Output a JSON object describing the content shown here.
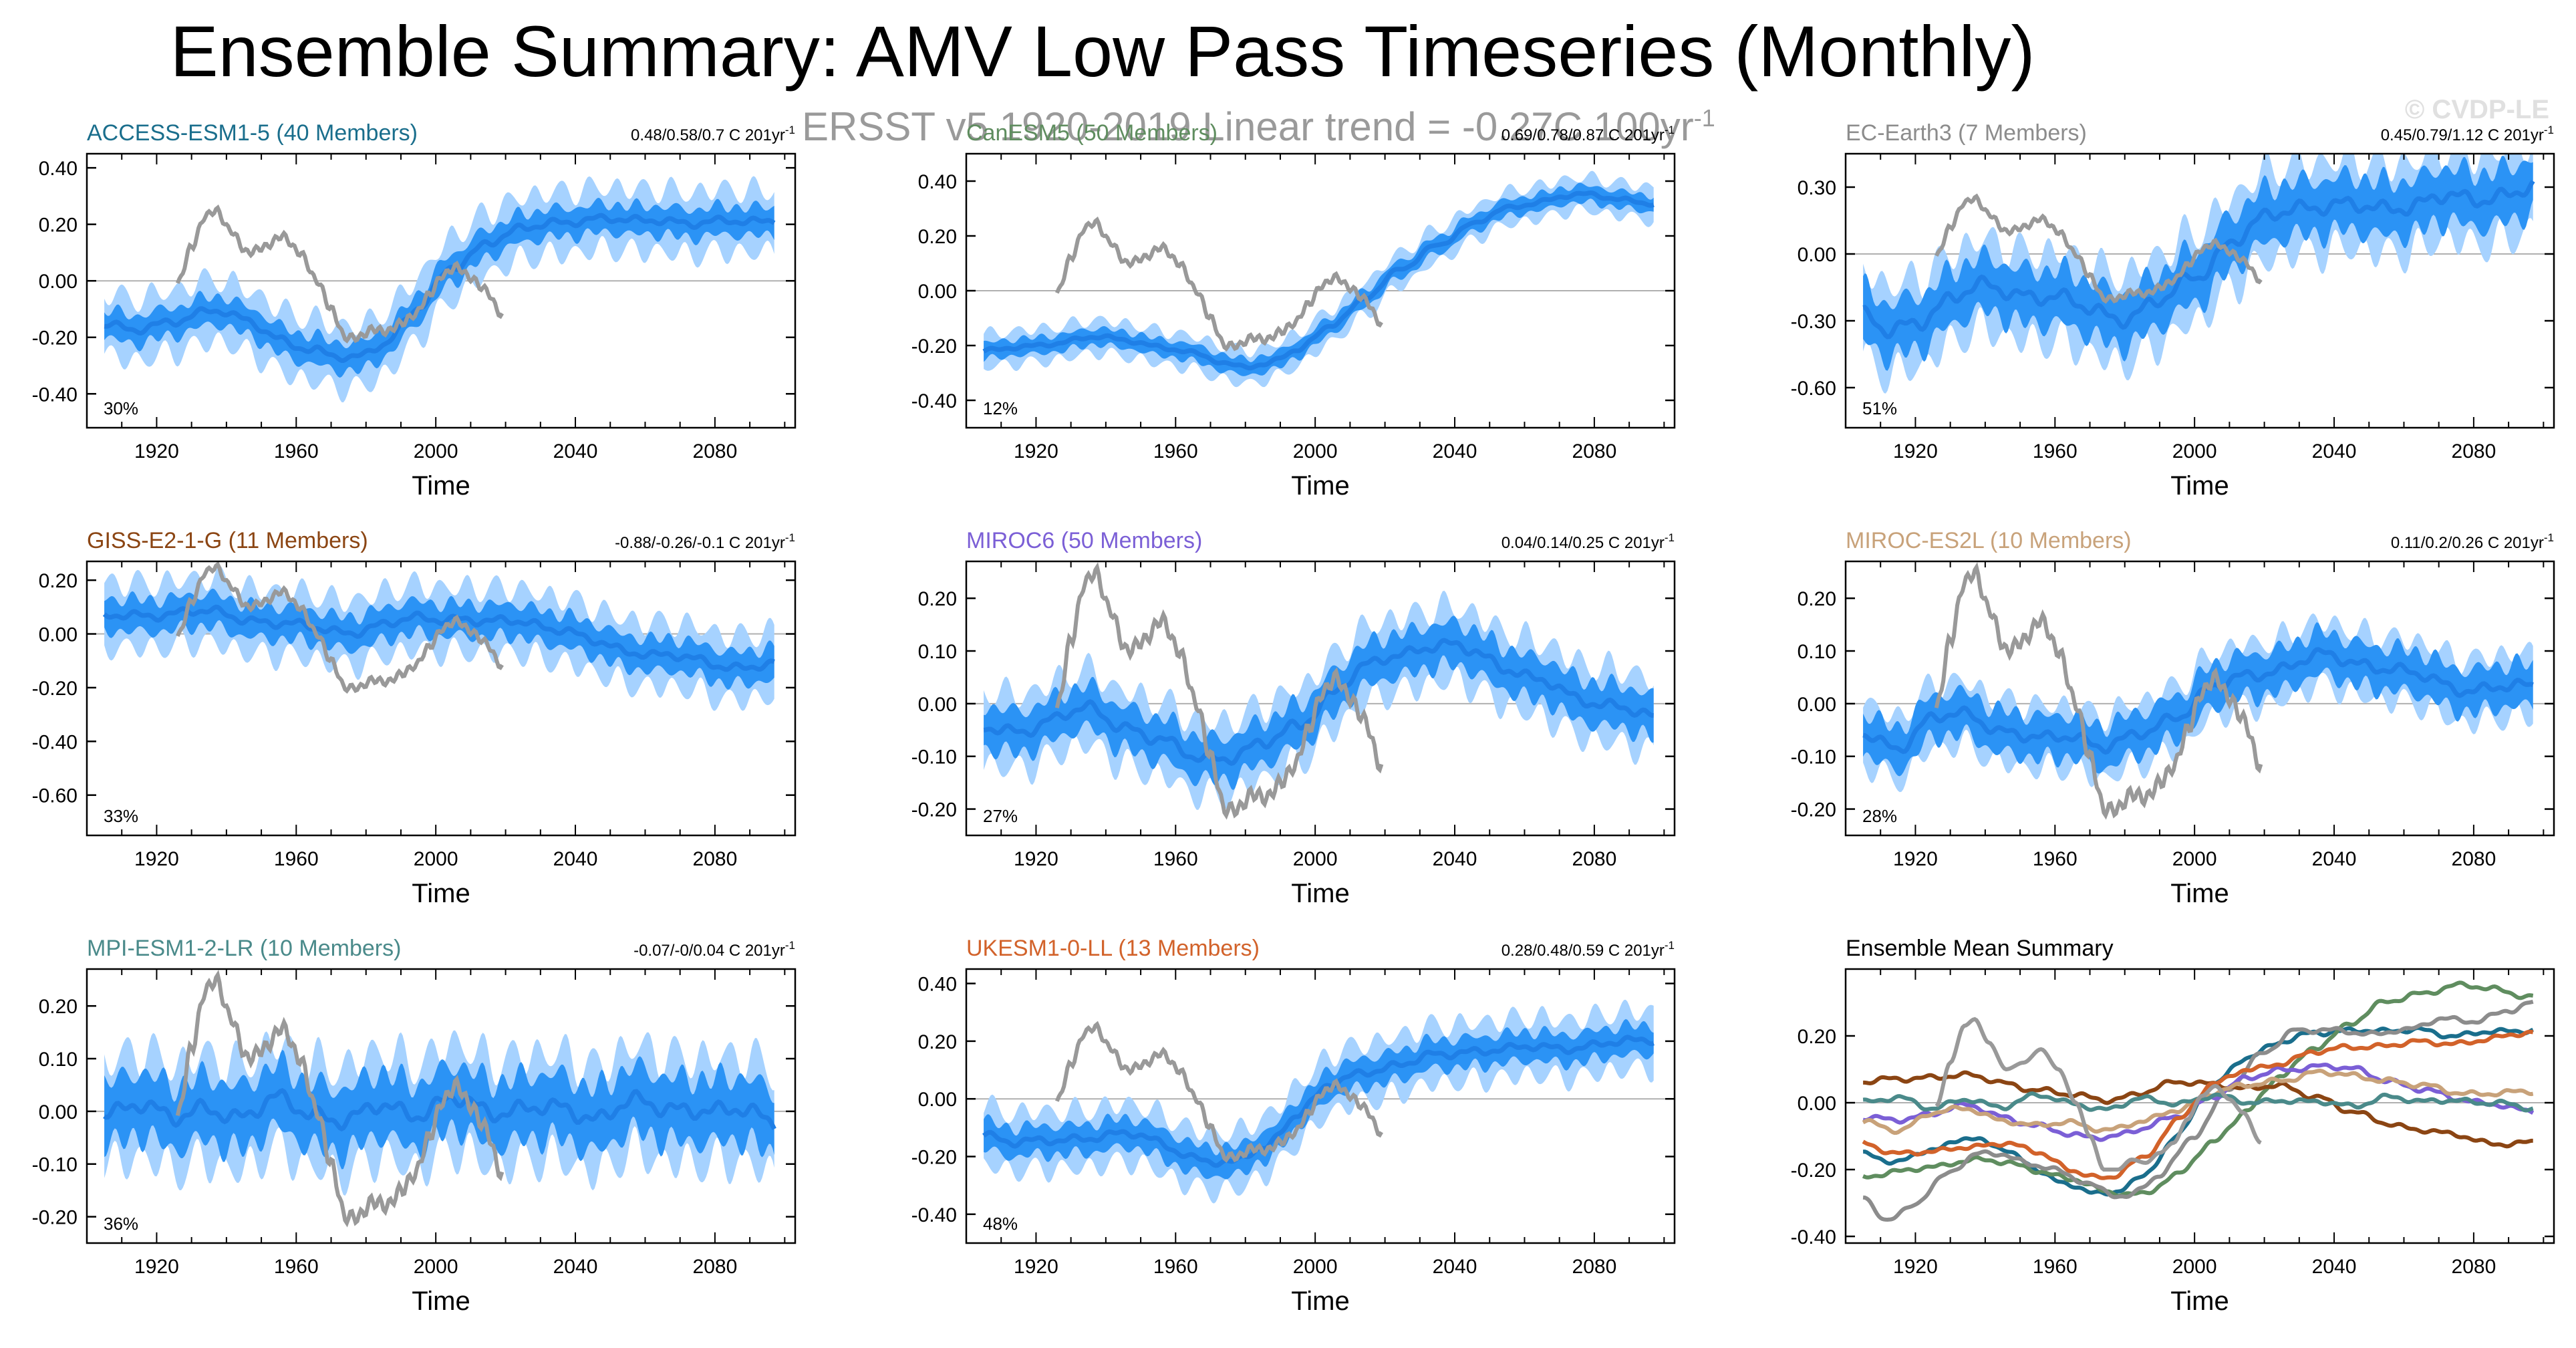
{
  "title": "Ensemble Summary: AMV Low Pass Timeseries (Monthly)",
  "subtitle_main": "ERSST v5 1920-2019  Linear trend = -0.27C 100yr",
  "subtitle_sup": "-1",
  "watermark": "© CVDP-LE",
  "colors": {
    "band_outer": "#a6d2ff",
    "band_inner": "#2b93f5",
    "ens_mean": "#1f7fe6",
    "obs": "#999999",
    "zero_line": "#b0b0b0"
  },
  "chart_data": [
    {
      "type": "line",
      "id": "access",
      "title": "ACCESS-ESM1-5 (40 Members)",
      "title_color": "#1a6e8c",
      "trend_label": "0.48/0.58/0.7 C 201yr",
      "trend_sup": "-1",
      "pct_label": "30%",
      "xlabel": "Time",
      "xlim": [
        1900,
        2103
      ],
      "ylim": [
        -0.52,
        0.45
      ],
      "yticks": [
        -0.4,
        -0.2,
        0.0,
        0.2,
        0.4
      ],
      "ytick_labels": [
        "-0.40",
        "-0.20",
        "0.00",
        "0.20",
        "0.40"
      ],
      "xticks": [
        1920,
        1960,
        2000,
        2040,
        2080
      ],
      "mean_x": [
        1905,
        1915,
        1925,
        1935,
        1945,
        1955,
        1965,
        1975,
        1985,
        1995,
        2005,
        2015,
        2025,
        2035,
        2045,
        2055,
        2065,
        2075,
        2085,
        2097
      ],
      "mean_y": [
        -0.15,
        -0.18,
        -0.14,
        -0.1,
        -0.14,
        -0.2,
        -0.25,
        -0.28,
        -0.22,
        -0.1,
        0.05,
        0.14,
        0.18,
        0.21,
        0.22,
        0.21,
        0.22,
        0.2,
        0.21,
        0.22
      ],
      "inner_spread": 0.05,
      "outer_spread": 0.11,
      "obs_x": [
        1926,
        1930,
        1934,
        1937,
        1941,
        1946,
        1951,
        1956,
        1961,
        1966,
        1970,
        1974,
        1978,
        1982,
        1986,
        1990,
        1994,
        1998,
        2002,
        2006,
        2010,
        2014,
        2019
      ],
      "obs_y": [
        -0.01,
        0.12,
        0.23,
        0.25,
        0.18,
        0.1,
        0.12,
        0.16,
        0.1,
        0.0,
        -0.1,
        -0.2,
        -0.2,
        -0.17,
        -0.18,
        -0.15,
        -0.12,
        -0.05,
        0.02,
        0.05,
        0.01,
        -0.03,
        -0.12
      ]
    },
    {
      "type": "line",
      "id": "canesm",
      "title": "CanESM5 (50 Members)",
      "title_color": "#5f8d5f",
      "trend_label": "0.69/0.78/0.87 C 201yr",
      "trend_sup": "-1",
      "pct_label": "12%",
      "xlabel": "Time",
      "xlim": [
        1900,
        2103
      ],
      "ylim": [
        -0.5,
        0.5
      ],
      "yticks": [
        -0.4,
        -0.2,
        0.0,
        0.2,
        0.4
      ],
      "ytick_labels": [
        "-0.40",
        "-0.20",
        "0.00",
        "0.20",
        "0.40"
      ],
      "xticks": [
        1920,
        1960,
        2000,
        2040,
        2080
      ],
      "mean_x": [
        1905,
        1915,
        1925,
        1935,
        1945,
        1955,
        1965,
        1975,
        1985,
        1995,
        2005,
        2015,
        2025,
        2035,
        2045,
        2055,
        2065,
        2075,
        2085,
        2097
      ],
      "mean_y": [
        -0.22,
        -0.21,
        -0.19,
        -0.17,
        -0.18,
        -0.2,
        -0.23,
        -0.27,
        -0.27,
        -0.22,
        -0.12,
        -0.02,
        0.08,
        0.17,
        0.24,
        0.3,
        0.33,
        0.35,
        0.34,
        0.32
      ],
      "inner_spread": 0.03,
      "outer_spread": 0.06,
      "obs_x": [
        1926,
        1930,
        1934,
        1937,
        1941,
        1946,
        1951,
        1956,
        1961,
        1966,
        1970,
        1974,
        1978,
        1982,
        1986,
        1990,
        1994,
        1998,
        2002,
        2006,
        2010,
        2014,
        2019
      ],
      "obs_y": [
        -0.01,
        0.12,
        0.23,
        0.25,
        0.18,
        0.1,
        0.12,
        0.16,
        0.1,
        0.0,
        -0.1,
        -0.2,
        -0.2,
        -0.17,
        -0.18,
        -0.15,
        -0.12,
        -0.05,
        0.02,
        0.05,
        0.01,
        -0.03,
        -0.12
      ]
    },
    {
      "type": "line",
      "id": "ecearth",
      "title": "EC-Earth3 (7 Members)",
      "title_color": "#8c8c8c",
      "trend_label": "0.45/0.79/1.12 C 201yr",
      "trend_sup": "-1",
      "pct_label": "51%",
      "xlabel": "Time",
      "xlim": [
        1900,
        2103
      ],
      "ylim": [
        -0.78,
        0.45
      ],
      "yticks": [
        -0.6,
        -0.3,
        0.0,
        0.3
      ],
      "ytick_labels": [
        "-0.60",
        "-0.30",
        "0.00",
        "0.30"
      ],
      "xticks": [
        1920,
        1960,
        2000,
        2040,
        2080
      ],
      "mean_x": [
        1905,
        1912,
        1920,
        1930,
        1940,
        1950,
        1960,
        1970,
        1980,
        1990,
        2000,
        2010,
        2020,
        2030,
        2040,
        2050,
        2060,
        2070,
        2080,
        2090,
        2097
      ],
      "mean_y": [
        -0.28,
        -0.36,
        -0.3,
        -0.2,
        -0.15,
        -0.17,
        -0.2,
        -0.25,
        -0.28,
        -0.22,
        -0.1,
        0.05,
        0.15,
        0.22,
        0.22,
        0.2,
        0.22,
        0.25,
        0.24,
        0.28,
        0.3
      ],
      "inner_spread": 0.12,
      "outer_spread": 0.2,
      "obs_x": [
        1926,
        1930,
        1934,
        1937,
        1941,
        1946,
        1951,
        1956,
        1961,
        1966,
        1970,
        1974,
        1978,
        1982,
        1986,
        1990,
        1994,
        1998,
        2002,
        2006,
        2010,
        2014,
        2019
      ],
      "obs_y": [
        -0.01,
        0.12,
        0.23,
        0.25,
        0.18,
        0.1,
        0.12,
        0.16,
        0.1,
        0.0,
        -0.1,
        -0.2,
        -0.2,
        -0.17,
        -0.18,
        -0.15,
        -0.12,
        -0.05,
        0.02,
        0.05,
        0.01,
        -0.03,
        -0.12
      ]
    },
    {
      "type": "line",
      "id": "giss",
      "title": "GISS-E2-1-G (11 Members)",
      "title_color": "#8b4513",
      "trend_label": "-0.88/-0.26/-0.1 C 201yr",
      "trend_sup": "-1",
      "pct_label": "33%",
      "xlabel": "Time",
      "xlim": [
        1900,
        2103
      ],
      "ylim": [
        -0.75,
        0.27
      ],
      "yticks": [
        -0.6,
        -0.4,
        -0.2,
        0.0,
        0.2
      ],
      "ytick_labels": [
        "-0.60",
        "-0.40",
        "-0.20",
        "0.00",
        "0.20"
      ],
      "xticks": [
        1920,
        1960,
        2000,
        2040,
        2080
      ],
      "mean_x": [
        1905,
        1915,
        1925,
        1935,
        1945,
        1955,
        1965,
        1975,
        1985,
        1995,
        2005,
        2015,
        2025,
        2035,
        2045,
        2055,
        2065,
        2075,
        2085,
        2097
      ],
      "mean_y": [
        0.06,
        0.07,
        0.08,
        0.08,
        0.06,
        0.04,
        0.02,
        0.01,
        0.03,
        0.06,
        0.06,
        0.04,
        0.05,
        0.02,
        -0.03,
        -0.06,
        -0.08,
        -0.1,
        -0.12,
        -0.12
      ],
      "inner_spread": 0.06,
      "outer_spread": 0.12,
      "obs_x": [
        1926,
        1930,
        1934,
        1937,
        1941,
        1946,
        1951,
        1956,
        1961,
        1966,
        1970,
        1974,
        1978,
        1982,
        1986,
        1990,
        1994,
        1998,
        2002,
        2006,
        2010,
        2014,
        2019
      ],
      "obs_y": [
        -0.01,
        0.12,
        0.23,
        0.25,
        0.18,
        0.1,
        0.12,
        0.16,
        0.1,
        0.0,
        -0.1,
        -0.2,
        -0.2,
        -0.17,
        -0.18,
        -0.15,
        -0.12,
        -0.05,
        0.02,
        0.05,
        0.01,
        -0.03,
        -0.12
      ]
    },
    {
      "type": "line",
      "id": "miroc6",
      "title": "MIROC6 (50 Members)",
      "title_color": "#7b5fd6",
      "trend_label": "0.04/0.14/0.25 C 201yr",
      "trend_sup": "-1",
      "pct_label": "27%",
      "xlabel": "Time",
      "xlim": [
        1900,
        2103
      ],
      "ylim": [
        -0.25,
        0.27
      ],
      "yticks": [
        -0.2,
        -0.1,
        0.0,
        0.1,
        0.2
      ],
      "ytick_labels": [
        "-0.20",
        "-0.10",
        "0.00",
        "0.10",
        "0.20"
      ],
      "xticks": [
        1920,
        1960,
        2000,
        2040,
        2080
      ],
      "mean_x": [
        1905,
        1915,
        1925,
        1935,
        1945,
        1955,
        1965,
        1975,
        1985,
        1995,
        2005,
        2015,
        2025,
        2035,
        2045,
        2055,
        2065,
        2075,
        2085,
        2097
      ],
      "mean_y": [
        -0.05,
        -0.05,
        -0.03,
        -0.01,
        -0.04,
        -0.07,
        -0.1,
        -0.1,
        -0.08,
        -0.04,
        0.02,
        0.07,
        0.1,
        0.11,
        0.1,
        0.07,
        0.04,
        0.01,
        0.0,
        -0.03
      ],
      "inner_spread": 0.04,
      "outer_spread": 0.07,
      "obs_x": [
        1926,
        1930,
        1934,
        1937,
        1941,
        1946,
        1951,
        1956,
        1961,
        1966,
        1970,
        1974,
        1978,
        1982,
        1986,
        1990,
        1994,
        1998,
        2002,
        2006,
        2010,
        2014,
        2019
      ],
      "obs_y": [
        -0.01,
        0.12,
        0.23,
        0.25,
        0.18,
        0.1,
        0.12,
        0.16,
        0.1,
        0.0,
        -0.1,
        -0.2,
        -0.2,
        -0.17,
        -0.18,
        -0.15,
        -0.12,
        -0.05,
        0.02,
        0.05,
        0.01,
        -0.03,
        -0.12
      ]
    },
    {
      "type": "line",
      "id": "mirocesl",
      "title": "MIROC-ES2L (10 Members)",
      "title_color": "#c8a27a",
      "trend_label": "0.11/0.2/0.26 C 201yr",
      "trend_sup": "-1",
      "pct_label": "28%",
      "xlabel": "Time",
      "xlim": [
        1900,
        2103
      ],
      "ylim": [
        -0.25,
        0.27
      ],
      "yticks": [
        -0.2,
        -0.1,
        0.0,
        0.1,
        0.2
      ],
      "ytick_labels": [
        "-0.20",
        "-0.10",
        "0.00",
        "0.10",
        "0.20"
      ],
      "xticks": [
        1920,
        1960,
        2000,
        2040,
        2080
      ],
      "mean_x": [
        1905,
        1915,
        1925,
        1935,
        1945,
        1955,
        1965,
        1975,
        1985,
        1995,
        2005,
        2015,
        2025,
        2035,
        2045,
        2055,
        2065,
        2075,
        2085,
        2097
      ],
      "mean_y": [
        -0.06,
        -0.08,
        -0.03,
        -0.02,
        -0.05,
        -0.07,
        -0.06,
        -0.08,
        -0.06,
        -0.02,
        0.03,
        0.05,
        0.07,
        0.09,
        0.08,
        0.07,
        0.05,
        0.03,
        0.03,
        0.03
      ],
      "inner_spread": 0.04,
      "outer_spread": 0.06,
      "obs_x": [
        1926,
        1930,
        1934,
        1937,
        1941,
        1946,
        1951,
        1956,
        1961,
        1966,
        1970,
        1974,
        1978,
        1982,
        1986,
        1990,
        1994,
        1998,
        2002,
        2006,
        2010,
        2014,
        2019
      ],
      "obs_y": [
        -0.01,
        0.12,
        0.23,
        0.25,
        0.18,
        0.1,
        0.12,
        0.16,
        0.1,
        0.0,
        -0.1,
        -0.2,
        -0.2,
        -0.17,
        -0.18,
        -0.15,
        -0.12,
        -0.05,
        0.02,
        0.05,
        0.01,
        -0.03,
        -0.12
      ]
    },
    {
      "type": "line",
      "id": "mpi",
      "title": "MPI-ESM1-2-LR (10 Members)",
      "title_color": "#4a8a8a",
      "trend_label": "-0.07/-0/0.04 C 201yr",
      "trend_sup": "-1",
      "pct_label": "36%",
      "xlabel": "Time",
      "xlim": [
        1900,
        2103
      ],
      "ylim": [
        -0.25,
        0.27
      ],
      "yticks": [
        -0.2,
        -0.1,
        0.0,
        0.1,
        0.2
      ],
      "ytick_labels": [
        "-0.20",
        "-0.10",
        "0.00",
        "0.10",
        "0.20"
      ],
      "xticks": [
        1920,
        1960,
        2000,
        2040,
        2080
      ],
      "mean_x": [
        1905,
        1915,
        1925,
        1935,
        1945,
        1955,
        1965,
        1975,
        1985,
        1995,
        2005,
        2015,
        2025,
        2035,
        2045,
        2055,
        2065,
        2075,
        2085,
        2097
      ],
      "mean_y": [
        0.0,
        0.02,
        -0.02,
        0.01,
        -0.01,
        0.02,
        0.0,
        -0.02,
        0.01,
        0.0,
        0.02,
        0.0,
        0.01,
        0.0,
        -0.01,
        0.02,
        0.0,
        0.01,
        0.0,
        -0.02
      ],
      "inner_spread": 0.06,
      "outer_spread": 0.1,
      "obs_x": [
        1926,
        1930,
        1934,
        1937,
        1941,
        1946,
        1951,
        1956,
        1961,
        1966,
        1970,
        1974,
        1978,
        1982,
        1986,
        1990,
        1994,
        1998,
        2002,
        2006,
        2010,
        2014,
        2019
      ],
      "obs_y": [
        -0.01,
        0.12,
        0.23,
        0.25,
        0.18,
        0.1,
        0.12,
        0.16,
        0.1,
        0.0,
        -0.1,
        -0.2,
        -0.2,
        -0.17,
        -0.18,
        -0.15,
        -0.12,
        -0.05,
        0.02,
        0.05,
        0.01,
        -0.03,
        -0.12
      ]
    },
    {
      "type": "line",
      "id": "ukesm",
      "title": "UKESM1-0-LL (13 Members)",
      "title_color": "#d2622a",
      "trend_label": "0.28/0.48/0.59 C 201yr",
      "trend_sup": "-1",
      "pct_label": "48%",
      "xlabel": "Time",
      "xlim": [
        1900,
        2103
      ],
      "ylim": [
        -0.5,
        0.45
      ],
      "yticks": [
        -0.4,
        -0.2,
        0.0,
        0.2,
        0.4
      ],
      "ytick_labels": [
        "-0.40",
        "-0.20",
        "0.00",
        "0.20",
        "0.40"
      ],
      "xticks": [
        1920,
        1960,
        2000,
        2040,
        2080
      ],
      "mean_x": [
        1905,
        1915,
        1925,
        1935,
        1945,
        1955,
        1965,
        1975,
        1985,
        1995,
        2005,
        2015,
        2025,
        2035,
        2045,
        2055,
        2065,
        2075,
        2085,
        2097
      ],
      "mean_y": [
        -0.12,
        -0.15,
        -0.15,
        -0.13,
        -0.12,
        -0.15,
        -0.2,
        -0.23,
        -0.17,
        -0.05,
        0.05,
        0.1,
        0.12,
        0.15,
        0.17,
        0.17,
        0.18,
        0.18,
        0.19,
        0.21
      ],
      "inner_spread": 0.05,
      "outer_spread": 0.1,
      "obs_x": [
        1926,
        1930,
        1934,
        1937,
        1941,
        1946,
        1951,
        1956,
        1961,
        1966,
        1970,
        1974,
        1978,
        1982,
        1986,
        1990,
        1994,
        1998,
        2002,
        2006,
        2010,
        2014,
        2019
      ],
      "obs_y": [
        -0.01,
        0.12,
        0.23,
        0.25,
        0.18,
        0.1,
        0.12,
        0.16,
        0.1,
        0.0,
        -0.1,
        -0.2,
        -0.2,
        -0.17,
        -0.18,
        -0.15,
        -0.12,
        -0.05,
        0.02,
        0.05,
        0.01,
        -0.03,
        -0.12
      ]
    },
    {
      "type": "line",
      "id": "summary",
      "title": "Ensemble Mean Summary",
      "title_color": "#000000",
      "xlabel": "Time",
      "xlim": [
        1900,
        2103
      ],
      "ylim": [
        -0.42,
        0.4
      ],
      "yticks": [
        -0.4,
        -0.2,
        0.0,
        0.2
      ],
      "ytick_labels": [
        "-0.40",
        "-0.20",
        "0.00",
        "0.20"
      ],
      "xticks": [
        1920,
        1960,
        2000,
        2040,
        2080
      ],
      "summary": true
    }
  ]
}
